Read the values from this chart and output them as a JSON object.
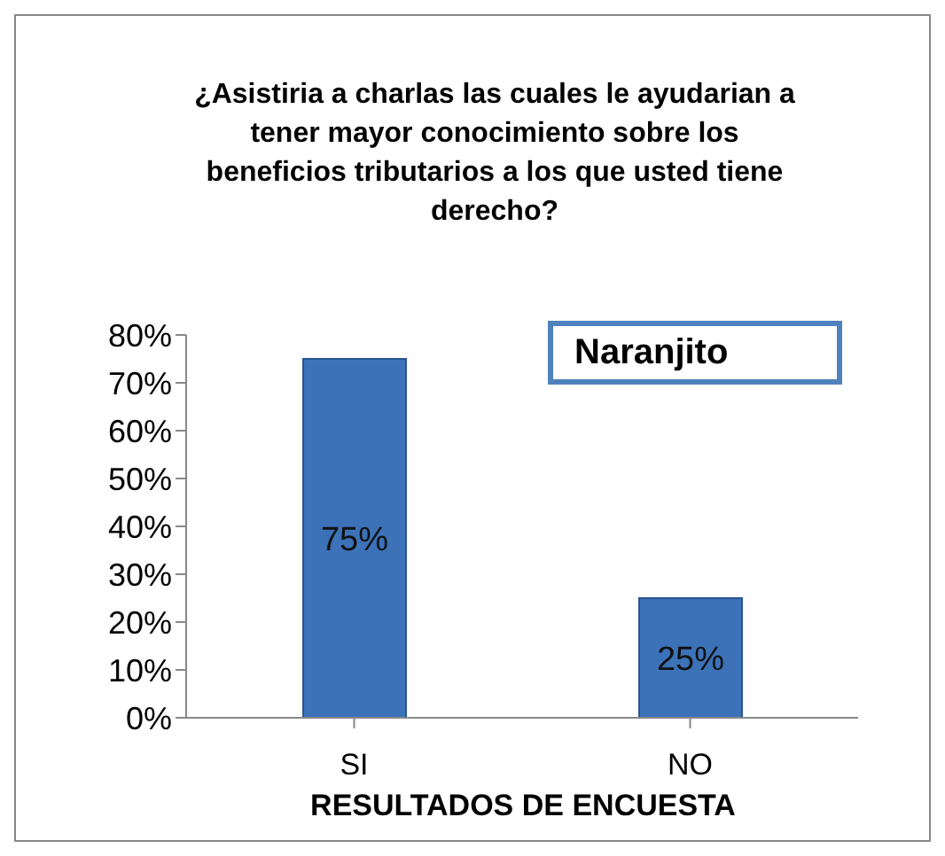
{
  "chart_data": {
    "type": "bar",
    "title": "¿Asistiria a charlas las cuales le ayudarian a tener mayor conocimiento sobre los beneficios tributarios a los que usted tiene derecho?",
    "xlabel": "RESULTADOS DE ENCUESTA",
    "annotations": [
      "Naranjito"
    ],
    "categories": [
      "SI",
      "NO"
    ],
    "values": [
      75,
      25
    ],
    "color": "#3c72b8",
    "value_labels": [
      "75%",
      "25%"
    ],
    "ylim": [
      0,
      80
    ],
    "yticks": [
      {
        "value": 0,
        "label": "0%"
      },
      {
        "value": 10,
        "label": "10%"
      },
      {
        "value": 20,
        "label": "20%"
      },
      {
        "value": 30,
        "label": "30%"
      },
      {
        "value": 40,
        "label": "40%"
      },
      {
        "value": 50,
        "label": "50%"
      },
      {
        "value": 60,
        "label": "60%"
      },
      {
        "value": 70,
        "label": "70%"
      },
      {
        "value": 80,
        "label": "80%"
      }
    ],
    "grid": false
  }
}
